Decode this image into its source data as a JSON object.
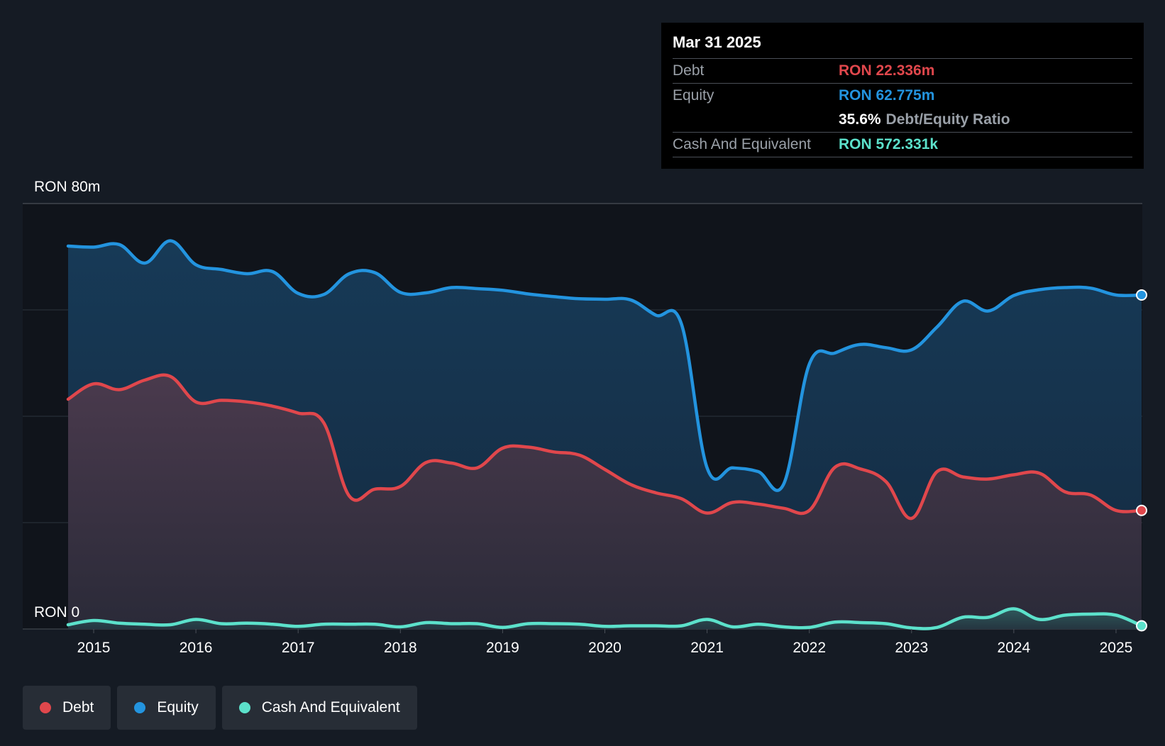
{
  "tooltip": {
    "date": "Mar 31 2025",
    "debt_label": "Debt",
    "debt_value": "RON 22.336m",
    "equity_label": "Equity",
    "equity_value": "RON 62.775m",
    "ratio_value": "35.6%",
    "ratio_label": "Debt/Equity Ratio",
    "cash_label": "Cash And Equivalent",
    "cash_value": "RON 572.331k"
  },
  "legend": {
    "debt": "Debt",
    "equity": "Equity",
    "cash": "Cash And Equivalent"
  },
  "colors": {
    "debt": "#e0474c",
    "equity": "#2394df",
    "cash": "#5ce1cb",
    "background": "#151b24",
    "plot_area": "#10141b"
  },
  "chart_data": {
    "type": "area",
    "y_top_label": "RON 80m",
    "y_bottom_label": "RON 0",
    "ylim": [
      0,
      80
    ],
    "unit": "RON m",
    "grid": true,
    "legend_position": "bottom-left",
    "xticks": [
      "2015",
      "2016",
      "2017",
      "2018",
      "2019",
      "2020",
      "2021",
      "2022",
      "2023",
      "2024",
      "2025"
    ],
    "x": [
      2014.75,
      2015.0,
      2015.25,
      2015.5,
      2015.75,
      2016.0,
      2016.25,
      2016.5,
      2016.75,
      2017.0,
      2017.25,
      2017.5,
      2017.75,
      2018.0,
      2018.25,
      2018.5,
      2018.75,
      2019.0,
      2019.25,
      2019.5,
      2019.75,
      2020.0,
      2020.25,
      2020.5,
      2020.75,
      2021.0,
      2021.25,
      2021.5,
      2021.75,
      2022.0,
      2022.25,
      2022.5,
      2022.75,
      2023.0,
      2023.25,
      2023.5,
      2023.75,
      2024.0,
      2024.25,
      2024.5,
      2024.75,
      2025.0,
      2025.25
    ],
    "series": [
      {
        "name": "Debt",
        "values": [
          43.2,
          46.1,
          45.0,
          46.8,
          47.5,
          42.7,
          43.0,
          42.7,
          41.9,
          40.6,
          38.8,
          25.0,
          26.3,
          26.8,
          31.3,
          31.2,
          30.3,
          34.0,
          34.2,
          33.3,
          32.7,
          30.0,
          27.2,
          25.6,
          24.5,
          21.8,
          23.8,
          23.5,
          22.7,
          22.3,
          30.4,
          30.1,
          27.7,
          20.8,
          29.6,
          28.6,
          28.2,
          29.0,
          29.3,
          25.8,
          25.2,
          22.3,
          22.3
        ]
      },
      {
        "name": "Equity",
        "values": [
          72.0,
          71.8,
          72.3,
          68.8,
          73.0,
          68.5,
          67.6,
          66.8,
          67.2,
          63.1,
          62.9,
          66.8,
          67.0,
          63.3,
          63.2,
          64.2,
          64.0,
          63.7,
          63.0,
          62.5,
          62.1,
          62.0,
          61.9,
          59.0,
          57.3,
          30.3,
          30.3,
          29.6,
          27.3,
          49.8,
          51.9,
          53.5,
          52.9,
          52.5,
          56.8,
          61.6,
          59.8,
          62.7,
          63.8,
          64.2,
          64.1,
          62.8,
          62.8
        ]
      },
      {
        "name": "Cash And Equivalent",
        "values": [
          0.8,
          1.6,
          1.1,
          0.9,
          0.8,
          1.8,
          1.0,
          1.1,
          0.9,
          0.5,
          0.9,
          0.9,
          0.9,
          0.4,
          1.2,
          1.0,
          1.0,
          0.3,
          1.0,
          1.0,
          0.9,
          0.5,
          0.6,
          0.6,
          0.6,
          1.8,
          0.4,
          0.9,
          0.4,
          0.3,
          1.3,
          1.2,
          1.0,
          0.2,
          0.3,
          2.2,
          2.2,
          3.8,
          1.8,
          2.6,
          2.8,
          2.6,
          0.6
        ]
      }
    ]
  }
}
